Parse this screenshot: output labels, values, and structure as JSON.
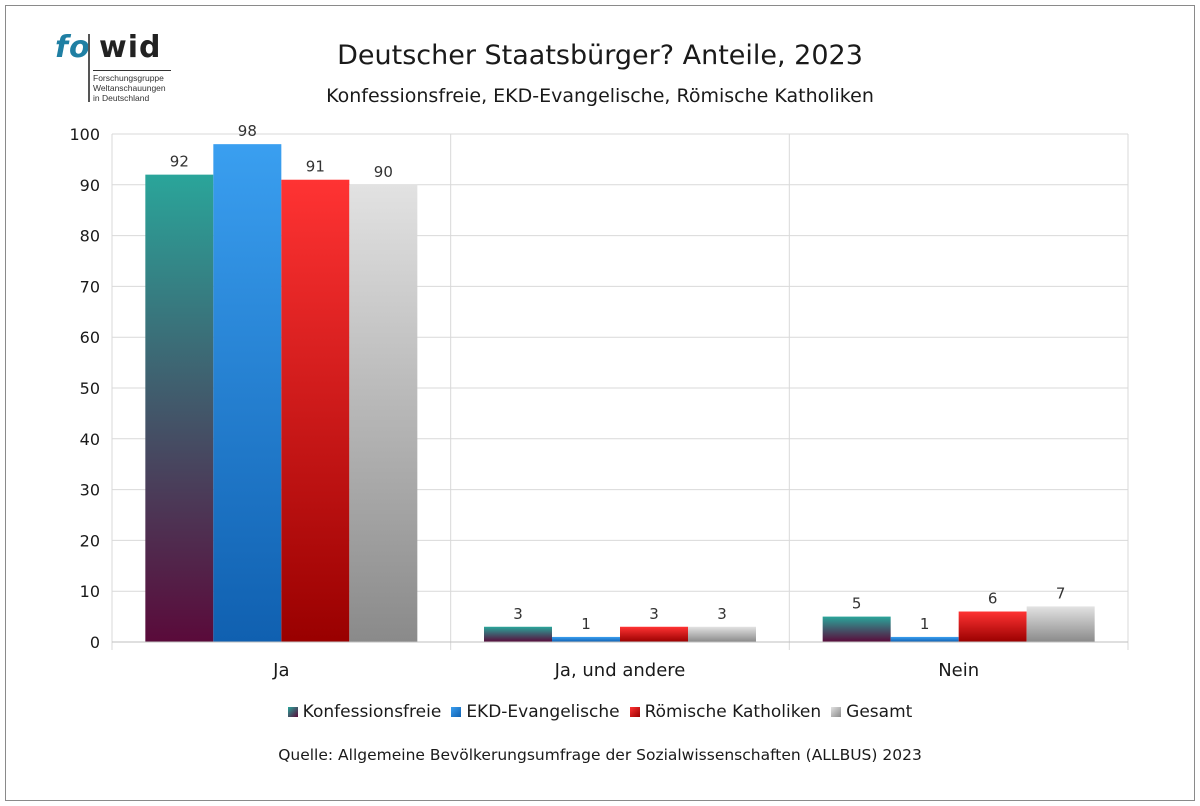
{
  "logo": {
    "word_fo": "fo",
    "word_wid": "wid",
    "line1": "Forschungsgruppe",
    "line2": "Weltanschauungen",
    "line3": "in Deutschland"
  },
  "source": "Quelle: Allgemeine Bevölkerungsumfrage der Sozialwissenschaften (ALLBUS) 2023",
  "colors": {
    "konfessionsfreie_top": "#2aa59a",
    "konfessionsfreie_bottom": "#5a0a3a",
    "ekd_top": "#3a9ff0",
    "ekd_bottom": "#1060b0",
    "katholiken_top": "#ff3333",
    "katholiken_bottom": "#990000",
    "gesamt_top": "#e2e2e2",
    "gesamt_bottom": "#8a8a8a",
    "gridline": "#d9d9d9"
  },
  "chart_data": {
    "type": "bar",
    "title": "Deutscher Staatsbürger? Anteile, 2023",
    "subtitle": "Konfessionsfreie, EKD-Evangelische, Römische Katholiken",
    "categories": [
      "Ja",
      "Ja, und andere",
      "Nein"
    ],
    "series": [
      {
        "name": "Konfessionsfreie",
        "values": [
          92,
          3,
          5
        ]
      },
      {
        "name": "EKD-Evangelische",
        "values": [
          98,
          1,
          1
        ]
      },
      {
        "name": "Römische Katholiken",
        "values": [
          91,
          3,
          6
        ]
      },
      {
        "name": "Gesamt",
        "values": [
          90,
          3,
          7
        ]
      }
    ],
    "ylim": [
      0,
      100
    ],
    "yticks": [
      "0",
      "10",
      "20",
      "30",
      "40",
      "50",
      "60",
      "70",
      "80",
      "90",
      "100"
    ],
    "grid": true,
    "legend_position": "bottom"
  }
}
